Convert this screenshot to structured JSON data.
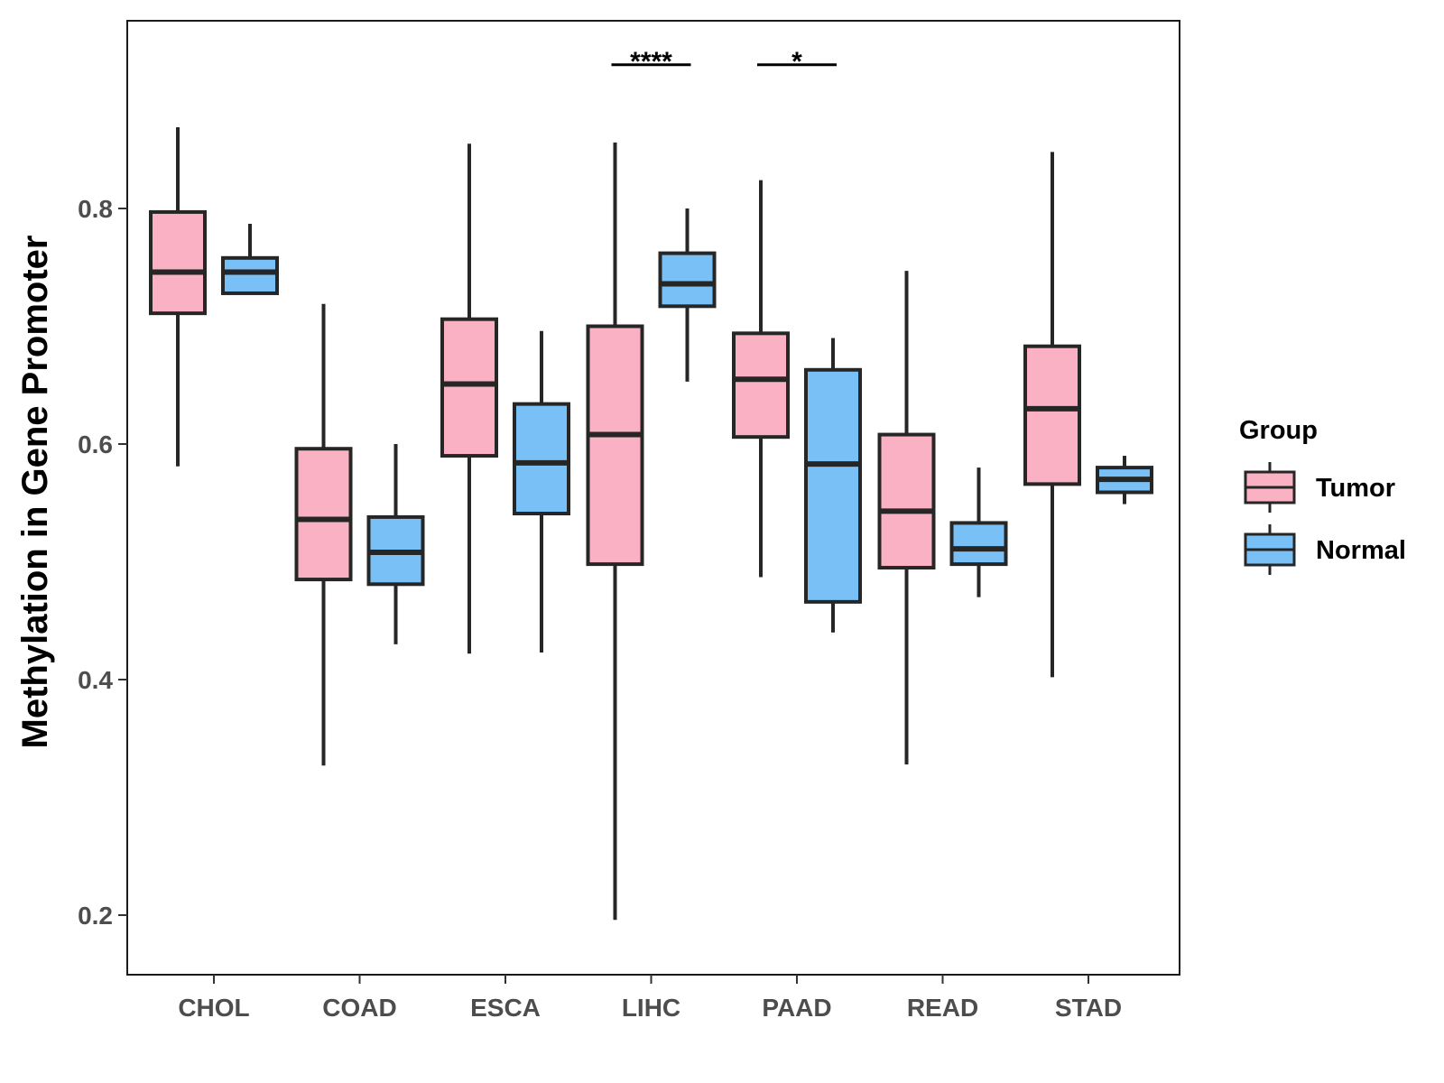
{
  "chart_data": {
    "type": "boxplot",
    "title": "",
    "xlabel": "",
    "ylabel": "Methylation in Gene Promoter",
    "ylim": [
      0.15,
      0.95
    ],
    "yticks": [
      0.2,
      0.4,
      0.6,
      0.8
    ],
    "ytick_labels": [
      "0.2",
      "0.4",
      "0.6",
      "0.8"
    ],
    "categories": [
      "CHOL",
      "COAD",
      "ESCA",
      "LIHC",
      "PAAD",
      "READ",
      "STAD"
    ],
    "legend": {
      "title": "Group",
      "position": "right",
      "entries": [
        {
          "name": "Tumor",
          "color": "#FBB1C4"
        },
        {
          "name": "Normal",
          "color": "#79C0F7"
        }
      ]
    },
    "series": [
      {
        "name": "Tumor",
        "color": "#FBB1C4",
        "boxes": [
          {
            "category": "CHOL",
            "min": 0.581,
            "q1": 0.711,
            "median": 0.746,
            "q3": 0.797,
            "max": 0.869
          },
          {
            "category": "COAD",
            "min": 0.327,
            "q1": 0.485,
            "median": 0.536,
            "q3": 0.596,
            "max": 0.719
          },
          {
            "category": "ESCA",
            "min": 0.422,
            "q1": 0.59,
            "median": 0.651,
            "q3": 0.706,
            "max": 0.855
          },
          {
            "category": "LIHC",
            "min": 0.196,
            "q1": 0.498,
            "median": 0.608,
            "q3": 0.7,
            "max": 0.856
          },
          {
            "category": "PAAD",
            "min": 0.487,
            "q1": 0.606,
            "median": 0.655,
            "q3": 0.694,
            "max": 0.824
          },
          {
            "category": "READ",
            "min": 0.328,
            "q1": 0.495,
            "median": 0.543,
            "q3": 0.608,
            "max": 0.747
          },
          {
            "category": "STAD",
            "min": 0.402,
            "q1": 0.566,
            "median": 0.63,
            "q3": 0.683,
            "max": 0.848
          }
        ]
      },
      {
        "name": "Normal",
        "color": "#79C0F7",
        "boxes": [
          {
            "category": "CHOL",
            "min": 0.728,
            "q1": 0.728,
            "median": 0.746,
            "q3": 0.758,
            "max": 0.787
          },
          {
            "category": "COAD",
            "min": 0.43,
            "q1": 0.481,
            "median": 0.508,
            "q3": 0.538,
            "max": 0.6
          },
          {
            "category": "ESCA",
            "min": 0.423,
            "q1": 0.541,
            "median": 0.584,
            "q3": 0.634,
            "max": 0.696
          },
          {
            "category": "LIHC",
            "min": 0.653,
            "q1": 0.717,
            "median": 0.736,
            "q3": 0.762,
            "max": 0.8
          },
          {
            "category": "PAAD",
            "min": 0.44,
            "q1": 0.466,
            "median": 0.583,
            "q3": 0.663,
            "max": 0.69
          },
          {
            "category": "READ",
            "min": 0.47,
            "q1": 0.498,
            "median": 0.511,
            "q3": 0.533,
            "max": 0.58
          },
          {
            "category": "STAD",
            "min": 0.549,
            "q1": 0.559,
            "median": 0.57,
            "q3": 0.58,
            "max": 0.59
          }
        ]
      }
    ],
    "annotations": [
      {
        "category": "LIHC",
        "label": "****",
        "y": 0.922
      },
      {
        "category": "PAAD",
        "label": "*",
        "y": 0.922
      }
    ]
  }
}
